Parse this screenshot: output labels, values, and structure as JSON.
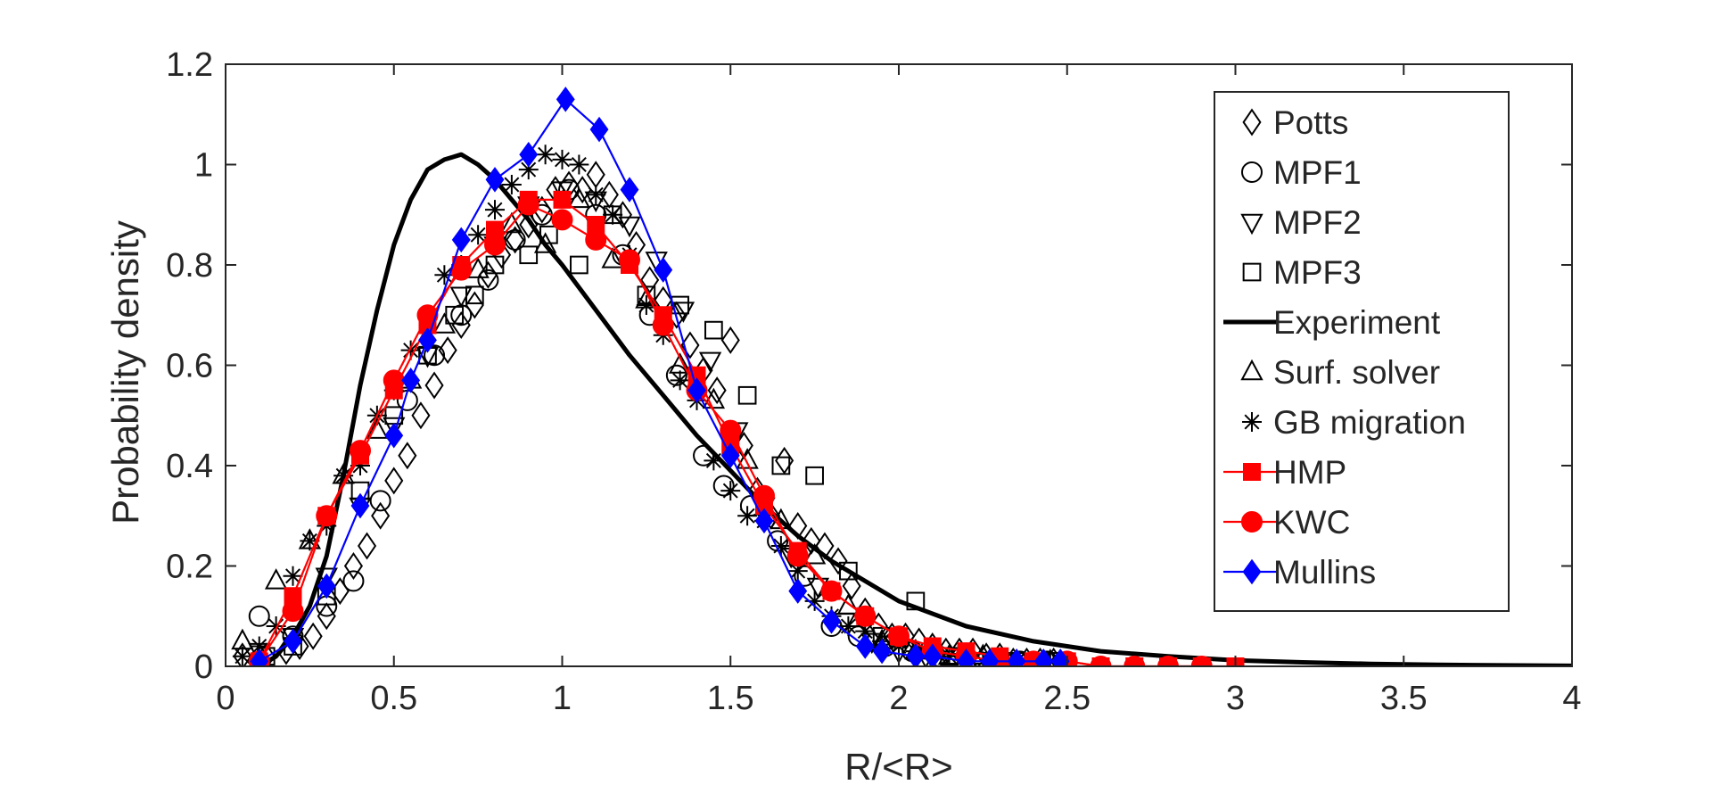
{
  "chart_data": {
    "type": "line",
    "xlabel": "R/<R>",
    "ylabel": "Probability density",
    "xlim": [
      0,
      4
    ],
    "ylim": [
      0,
      1.2
    ],
    "xticks": [
      0,
      0.5,
      1,
      1.5,
      2,
      2.5,
      3,
      3.5,
      4
    ],
    "xtick_labels": [
      "0",
      "0.5",
      "1",
      "1.5",
      "2",
      "2.5",
      "3",
      "3.5",
      "4"
    ],
    "yticks": [
      0,
      0.2,
      0.4,
      0.6,
      0.8,
      1,
      1.2
    ],
    "ytick_labels": [
      "0",
      "0.2",
      "0.4",
      "0.6",
      "0.8",
      "1",
      "1.2"
    ],
    "grid": false,
    "legend_position": "top-right",
    "series": [
      {
        "name": "Potts",
        "marker": "diamond-open",
        "color": "#000000",
        "line": false,
        "x": [
          0.05,
          0.12,
          0.18,
          0.22,
          0.26,
          0.3,
          0.34,
          0.38,
          0.42,
          0.46,
          0.5,
          0.54,
          0.58,
          0.62,
          0.66,
          0.7,
          0.74,
          0.78,
          0.82,
          0.86,
          0.9,
          0.94,
          0.98,
          1.02,
          1.06,
          1.1,
          1.14,
          1.18,
          1.22,
          1.26,
          1.3,
          1.34,
          1.38,
          1.42,
          1.46,
          1.5,
          1.54,
          1.58,
          1.62,
          1.66,
          1.7,
          1.74,
          1.78,
          1.82,
          1.86,
          1.9,
          1.94,
          1.98,
          2.02,
          2.06,
          2.1,
          2.14,
          2.18,
          2.22,
          2.26,
          2.3,
          2.34,
          2.38,
          2.42,
          2.46
        ],
        "y": [
          0.02,
          0.02,
          0.03,
          0.04,
          0.06,
          0.1,
          0.15,
          0.2,
          0.24,
          0.3,
          0.37,
          0.42,
          0.5,
          0.56,
          0.63,
          0.68,
          0.72,
          0.78,
          0.82,
          0.85,
          0.88,
          0.91,
          0.95,
          0.96,
          0.95,
          0.98,
          0.94,
          0.9,
          0.84,
          0.77,
          0.73,
          0.7,
          0.64,
          0.59,
          0.55,
          0.65,
          0.44,
          0.35,
          0.3,
          0.41,
          0.28,
          0.25,
          0.24,
          0.21,
          0.16,
          0.11,
          0.08,
          0.06,
          0.06,
          0.05,
          0.04,
          0.03,
          0.03,
          0.03,
          0.02,
          0.02,
          0.01,
          0.01,
          0.01,
          0.01
        ]
      },
      {
        "name": "MPF1",
        "marker": "circle-open",
        "color": "#000000",
        "line": false,
        "x": [
          0.1,
          0.2,
          0.3,
          0.38,
          0.46,
          0.54,
          0.62,
          0.7,
          0.78,
          0.86,
          0.94,
          1.02,
          1.1,
          1.18,
          1.26,
          1.34,
          1.42,
          1.48,
          1.56,
          1.64,
          1.72,
          1.8,
          1.88,
          1.96,
          2.04,
          2.12,
          2.2,
          2.28,
          2.36,
          2.44
        ],
        "y": [
          0.1,
          0.06,
          0.12,
          0.17,
          0.33,
          0.53,
          0.62,
          0.7,
          0.77,
          0.85,
          0.9,
          0.95,
          0.9,
          0.82,
          0.7,
          0.58,
          0.42,
          0.36,
          0.32,
          0.25,
          0.18,
          0.08,
          0.06,
          0.04,
          0.03,
          0.02,
          0.02,
          0.01,
          0.01,
          0.01
        ]
      },
      {
        "name": "MPF2",
        "marker": "triangle-down-open",
        "color": "#000000",
        "line": false,
        "x": [
          0.1,
          0.2,
          0.3,
          0.4,
          0.5,
          0.6,
          0.7,
          0.8,
          0.9,
          1.0,
          1.1,
          1.2,
          1.28,
          1.36,
          1.44,
          1.52,
          1.6,
          1.68,
          1.76,
          1.84,
          1.92,
          2.0,
          2.08,
          2.16,
          2.24,
          2.32,
          2.4
        ],
        "y": [
          0.03,
          0.06,
          0.18,
          0.32,
          0.48,
          0.62,
          0.74,
          0.84,
          0.92,
          0.95,
          0.93,
          0.88,
          0.81,
          0.71,
          0.61,
          0.47,
          0.32,
          0.22,
          0.16,
          0.09,
          0.05,
          0.03,
          0.02,
          0.01,
          0.01,
          0.01,
          0.01
        ]
      },
      {
        "name": "MPF3",
        "marker": "square-open",
        "color": "#000000",
        "line": false,
        "x": [
          0.12,
          0.2,
          0.3,
          0.4,
          0.5,
          0.6,
          0.68,
          0.74,
          0.8,
          0.9,
          0.96,
          1.05,
          1.15,
          1.25,
          1.35,
          1.45,
          1.55,
          1.65,
          1.75,
          1.85,
          1.95,
          2.05,
          2.15,
          2.25,
          2.35,
          2.45
        ],
        "y": [
          0.02,
          0.04,
          0.14,
          0.35,
          0.5,
          0.62,
          0.7,
          0.74,
          0.8,
          0.82,
          0.86,
          0.8,
          0.9,
          0.74,
          0.72,
          0.67,
          0.54,
          0.4,
          0.38,
          0.19,
          0.06,
          0.13,
          0.02,
          0.01,
          0.01,
          0.01
        ]
      },
      {
        "name": "Experiment",
        "marker": "none",
        "color": "#000000",
        "line": true,
        "linewidth": "thick",
        "x": [
          0.1,
          0.15,
          0.2,
          0.25,
          0.3,
          0.35,
          0.4,
          0.45,
          0.5,
          0.55,
          0.6,
          0.65,
          0.7,
          0.75,
          0.8,
          0.85,
          0.9,
          0.95,
          1.0,
          1.1,
          1.2,
          1.3,
          1.4,
          1.5,
          1.6,
          1.7,
          1.8,
          1.9,
          2.0,
          2.2,
          2.4,
          2.6,
          2.8,
          3.0,
          3.2,
          3.4,
          3.6,
          3.8,
          4.0
        ],
        "y": [
          0.0,
          0.02,
          0.06,
          0.12,
          0.22,
          0.38,
          0.56,
          0.71,
          0.84,
          0.93,
          0.99,
          1.01,
          1.02,
          1.0,
          0.97,
          0.93,
          0.89,
          0.84,
          0.8,
          0.71,
          0.62,
          0.54,
          0.46,
          0.39,
          0.32,
          0.26,
          0.21,
          0.17,
          0.13,
          0.08,
          0.05,
          0.03,
          0.02,
          0.012,
          0.008,
          0.005,
          0.003,
          0.002,
          0.001
        ]
      },
      {
        "name": "Surf. solver",
        "marker": "triangle-up-open",
        "color": "#000000",
        "line": false,
        "x": [
          0.05,
          0.15,
          0.25,
          0.35,
          0.45,
          0.55,
          0.65,
          0.75,
          0.85,
          0.95,
          1.05,
          1.15,
          1.25,
          1.35,
          1.45,
          1.55,
          1.65,
          1.75,
          1.85,
          1.95,
          2.05,
          2.15,
          2.25,
          2.35,
          2.45
        ],
        "y": [
          0.05,
          0.17,
          0.25,
          0.38,
          0.47,
          0.57,
          0.68,
          0.79,
          0.88,
          0.84,
          0.93,
          0.81,
          0.73,
          0.6,
          0.53,
          0.41,
          0.29,
          0.22,
          0.12,
          0.05,
          0.03,
          0.02,
          0.02,
          0.01,
          0.01
        ]
      },
      {
        "name": "GB migration",
        "marker": "asterisk",
        "color": "#000000",
        "line": false,
        "x": [
          0.05,
          0.1,
          0.15,
          0.2,
          0.25,
          0.3,
          0.35,
          0.4,
          0.45,
          0.5,
          0.55,
          0.6,
          0.65,
          0.7,
          0.75,
          0.8,
          0.85,
          0.9,
          0.95,
          1.0,
          1.05,
          1.1,
          1.15,
          1.2,
          1.25,
          1.3,
          1.35,
          1.4,
          1.45,
          1.5,
          1.55,
          1.6,
          1.65,
          1.7,
          1.75,
          1.8,
          1.85,
          1.9,
          1.95,
          2.0,
          2.05,
          2.1,
          2.15,
          2.2,
          2.25,
          2.3,
          2.35,
          2.4,
          2.45
        ],
        "y": [
          0.02,
          0.04,
          0.08,
          0.18,
          0.25,
          0.28,
          0.38,
          0.4,
          0.5,
          0.55,
          0.63,
          0.7,
          0.78,
          0.8,
          0.86,
          0.91,
          0.96,
          0.99,
          1.02,
          1.01,
          1.0,
          0.94,
          0.9,
          0.82,
          0.72,
          0.66,
          0.57,
          0.53,
          0.41,
          0.35,
          0.3,
          0.29,
          0.24,
          0.19,
          0.13,
          0.1,
          0.08,
          0.07,
          0.05,
          0.04,
          0.03,
          0.03,
          0.02,
          0.02,
          0.01,
          0.01,
          0.01,
          0.01,
          0.01
        ]
      },
      {
        "name": "HMP",
        "marker": "square-filled",
        "color": "#ff0000",
        "line": true,
        "x": [
          0.1,
          0.2,
          0.3,
          0.4,
          0.5,
          0.6,
          0.7,
          0.8,
          0.9,
          1.0,
          1.1,
          1.2,
          1.3,
          1.4,
          1.5,
          1.6,
          1.7,
          1.8,
          1.9,
          2.0,
          2.1,
          2.2,
          2.3,
          2.4,
          2.5,
          2.6,
          2.7,
          2.8,
          2.9,
          3.0
        ],
        "y": [
          0.01,
          0.14,
          0.3,
          0.42,
          0.55,
          0.68,
          0.8,
          0.87,
          0.93,
          0.93,
          0.88,
          0.8,
          0.7,
          0.58,
          0.44,
          0.32,
          0.23,
          0.15,
          0.1,
          0.06,
          0.04,
          0.03,
          0.02,
          0.01,
          0.01,
          0.0,
          0.0,
          0.0,
          0.0,
          0.0
        ]
      },
      {
        "name": "KWC",
        "marker": "circle-filled",
        "color": "#ff0000",
        "line": true,
        "x": [
          0.1,
          0.2,
          0.3,
          0.4,
          0.5,
          0.6,
          0.7,
          0.8,
          0.9,
          1.0,
          1.1,
          1.2,
          1.3,
          1.4,
          1.5,
          1.6,
          1.7,
          1.8,
          1.9,
          2.0,
          2.1,
          2.2,
          2.3,
          2.4,
          2.5,
          2.6,
          2.7,
          2.8,
          2.9
        ],
        "y": [
          0.01,
          0.11,
          0.3,
          0.43,
          0.57,
          0.7,
          0.79,
          0.84,
          0.92,
          0.89,
          0.85,
          0.81,
          0.68,
          0.55,
          0.47,
          0.34,
          0.22,
          0.15,
          0.1,
          0.06,
          0.03,
          0.02,
          0.01,
          0.01,
          0.01,
          0.0,
          0.0,
          0.0,
          0.0
        ]
      },
      {
        "name": "Mullins",
        "marker": "diamond-filled",
        "color": "#0000ff",
        "line": true,
        "x": [
          0.1,
          0.2,
          0.3,
          0.4,
          0.5,
          0.55,
          0.6,
          0.7,
          0.8,
          0.9,
          1.01,
          1.11,
          1.2,
          1.3,
          1.4,
          1.5,
          1.6,
          1.7,
          1.8,
          1.9,
          1.95,
          2.05,
          2.1,
          2.2,
          2.27,
          2.35,
          2.43,
          2.48
        ],
        "y": [
          0.01,
          0.05,
          0.16,
          0.32,
          0.46,
          0.57,
          0.65,
          0.85,
          0.97,
          1.02,
          1.13,
          1.07,
          0.95,
          0.79,
          0.55,
          0.42,
          0.29,
          0.15,
          0.09,
          0.04,
          0.03,
          0.02,
          0.02,
          0.01,
          0.01,
          0.01,
          0.01,
          0.01
        ]
      }
    ]
  }
}
